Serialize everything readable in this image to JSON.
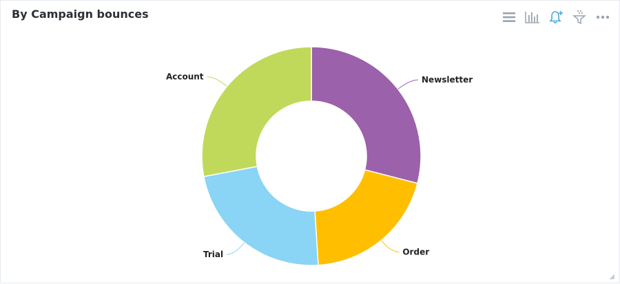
{
  "header": {
    "title": "By Campaign bounces"
  },
  "toolbar": {
    "icons": [
      "list-icon",
      "bar-chart-icon",
      "bell-plus-icon",
      "funnel-icon",
      "more-icon"
    ]
  },
  "chart_data": {
    "type": "pie",
    "donut": true,
    "categories": [
      "Newsletter",
      "Order",
      "Trial",
      "Account"
    ],
    "values": [
      29,
      20,
      23,
      28
    ],
    "colors": [
      "#9b61aa",
      "#ffbf00",
      "#8ad4f5",
      "#c0d95b"
    ]
  }
}
